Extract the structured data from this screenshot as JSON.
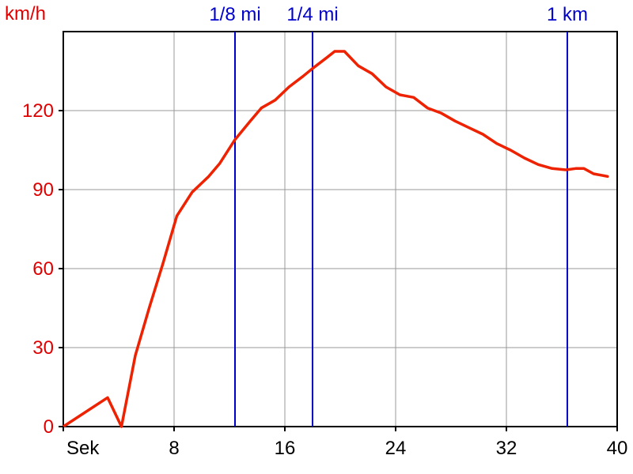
{
  "chart_data": {
    "type": "line",
    "ylabel": "km/h",
    "xlabel": "Sek",
    "xlim": [
      0,
      40
    ],
    "ylim": [
      0,
      150
    ],
    "x_ticks": [
      {
        "value": 0,
        "label": "Sek"
      },
      {
        "value": 8,
        "label": "8"
      },
      {
        "value": 16,
        "label": "16"
      },
      {
        "value": 24,
        "label": "24"
      },
      {
        "value": 32,
        "label": "32"
      },
      {
        "value": 40,
        "label": "40"
      }
    ],
    "y_ticks": [
      0,
      30,
      60,
      90,
      120
    ],
    "grid": true,
    "line_color": "#ee2200",
    "marker_color": "#0000cc",
    "axis_label_color": "#e00000",
    "markers": [
      {
        "label": "1/8 mi",
        "x": 12.4
      },
      {
        "label": "1/4 mi",
        "x": 18.0
      },
      {
        "label": "1 km",
        "x": 36.4
      }
    ],
    "series": [
      {
        "x": [
          0,
          3.2,
          4.2,
          5.2,
          6.2,
          7.2,
          8.2,
          9.3,
          10.5,
          11.3,
          12.4,
          13.5,
          14.3,
          15.3,
          16.3,
          17.3,
          18.0,
          19.0,
          19.6,
          20.3,
          21.3,
          22.3,
          23.3,
          24.3,
          25.3,
          26.3,
          27.3,
          28.3,
          29.3,
          30.3,
          31.3,
          32.3,
          33.3,
          34.3,
          35.3,
          36.3,
          37.0,
          37.6,
          38.3,
          39.3
        ],
        "y": [
          0,
          11,
          0,
          27,
          45,
          62,
          80,
          89,
          95,
          100,
          109,
          116,
          121,
          124,
          129,
          133,
          136,
          140,
          142.5,
          142.5,
          137,
          134,
          129,
          126,
          125,
          121,
          119,
          116,
          113.5,
          111,
          107.5,
          105,
          102,
          99.5,
          98,
          97.5,
          98,
          98,
          96,
          95
        ]
      }
    ]
  }
}
